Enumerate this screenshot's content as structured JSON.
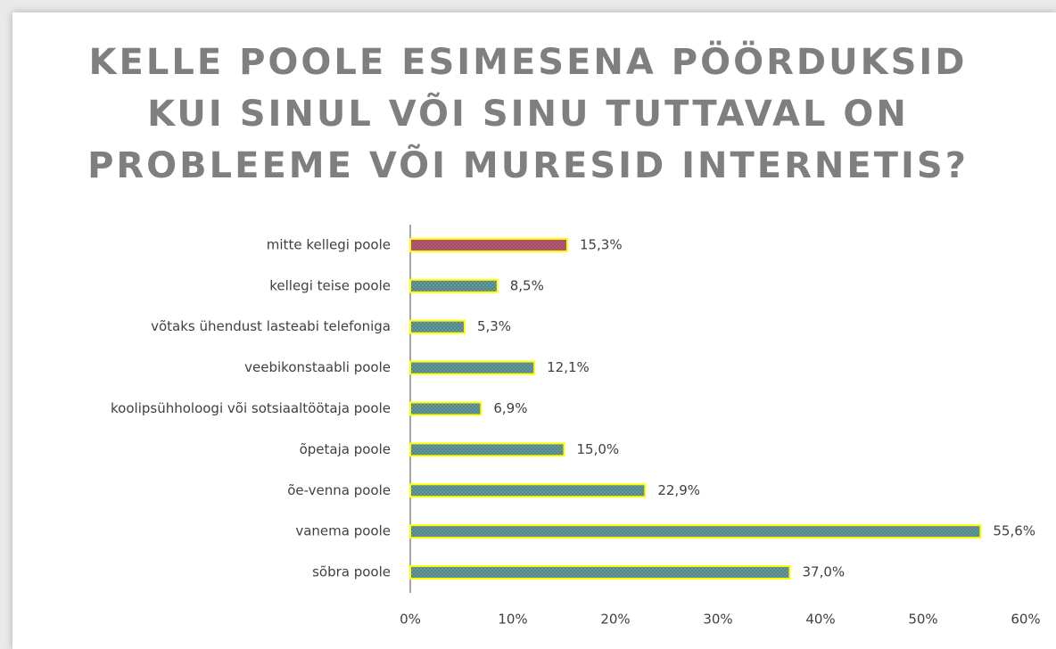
{
  "chart_data": {
    "type": "barh",
    "title": [
      "KELLE POOLE ESIMESENA PÖÖRDUKSID",
      "KUI SINUL VÕI SINU TUTTAVAL ON",
      "PROBLEEME VÕI MURESID INTERNETIS?"
    ],
    "categories": [
      "mitte kellegi poole",
      "kellegi teise poole",
      "võtaks ühendust lasteabi telefoniga",
      "veebikonstaabli poole",
      "koolipsühholoogi või sotsiaaltöötaja poole",
      "õpetaja poole",
      "õe-venna poole",
      "vanema poole",
      "sõbra poole"
    ],
    "values": [
      15.3,
      8.5,
      5.3,
      12.1,
      6.9,
      15.0,
      22.9,
      55.6,
      37.0
    ],
    "value_labels": [
      "15,3%",
      "8,5%",
      "5,3%",
      "12,1%",
      "6,9%",
      "15,0%",
      "22,9%",
      "55,6%",
      "37,0%"
    ],
    "colors": [
      "#c9517a",
      "#5fa3a8",
      "#5fa3a8",
      "#5fa3a8",
      "#5fa3a8",
      "#5fa3a8",
      "#5fa3a8",
      "#5fa3a8",
      "#5fa3a8"
    ],
    "edgecolor": "#ffff00",
    "xlim": [
      0,
      60
    ],
    "xticks": [
      {
        "value": 0,
        "label": "0%"
      },
      {
        "value": 10,
        "label": "10%"
      },
      {
        "value": 20,
        "label": "20%"
      },
      {
        "value": 30,
        "label": "30%"
      },
      {
        "value": 40,
        "label": "40%"
      },
      {
        "value": 50,
        "label": "50%"
      },
      {
        "value": 60,
        "label": "60%"
      }
    ]
  }
}
